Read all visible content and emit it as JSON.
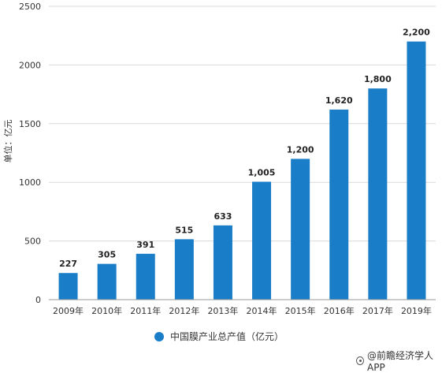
{
  "chart_data": {
    "type": "bar",
    "categories": [
      "2009年",
      "2010年",
      "2011年",
      "2012年",
      "2013年",
      "2014年",
      "2015年",
      "2016年",
      "2017年",
      "2019年"
    ],
    "series": [
      {
        "name": "中国膜产业总产值（亿元）",
        "values": [
          227,
          305,
          391,
          515,
          633,
          1005,
          1200,
          1620,
          1800,
          2200
        ]
      }
    ],
    "data_labels": [
      "227",
      "305",
      "391",
      "515",
      "633",
      "1,005",
      "1,200",
      "1,620",
      "1,800",
      "2,200"
    ],
    "ylabel": "单位：亿元",
    "ylim": [
      0,
      2500
    ],
    "yticks": [
      0,
      500,
      1000,
      1500,
      2000,
      2500
    ],
    "grid": true,
    "legend_position": "bottom",
    "bar_color": "#1a7dc8"
  },
  "legend": {
    "label": "中国膜产业总产值（亿元）"
  },
  "source": {
    "label": "@前瞻经济学人APP"
  }
}
